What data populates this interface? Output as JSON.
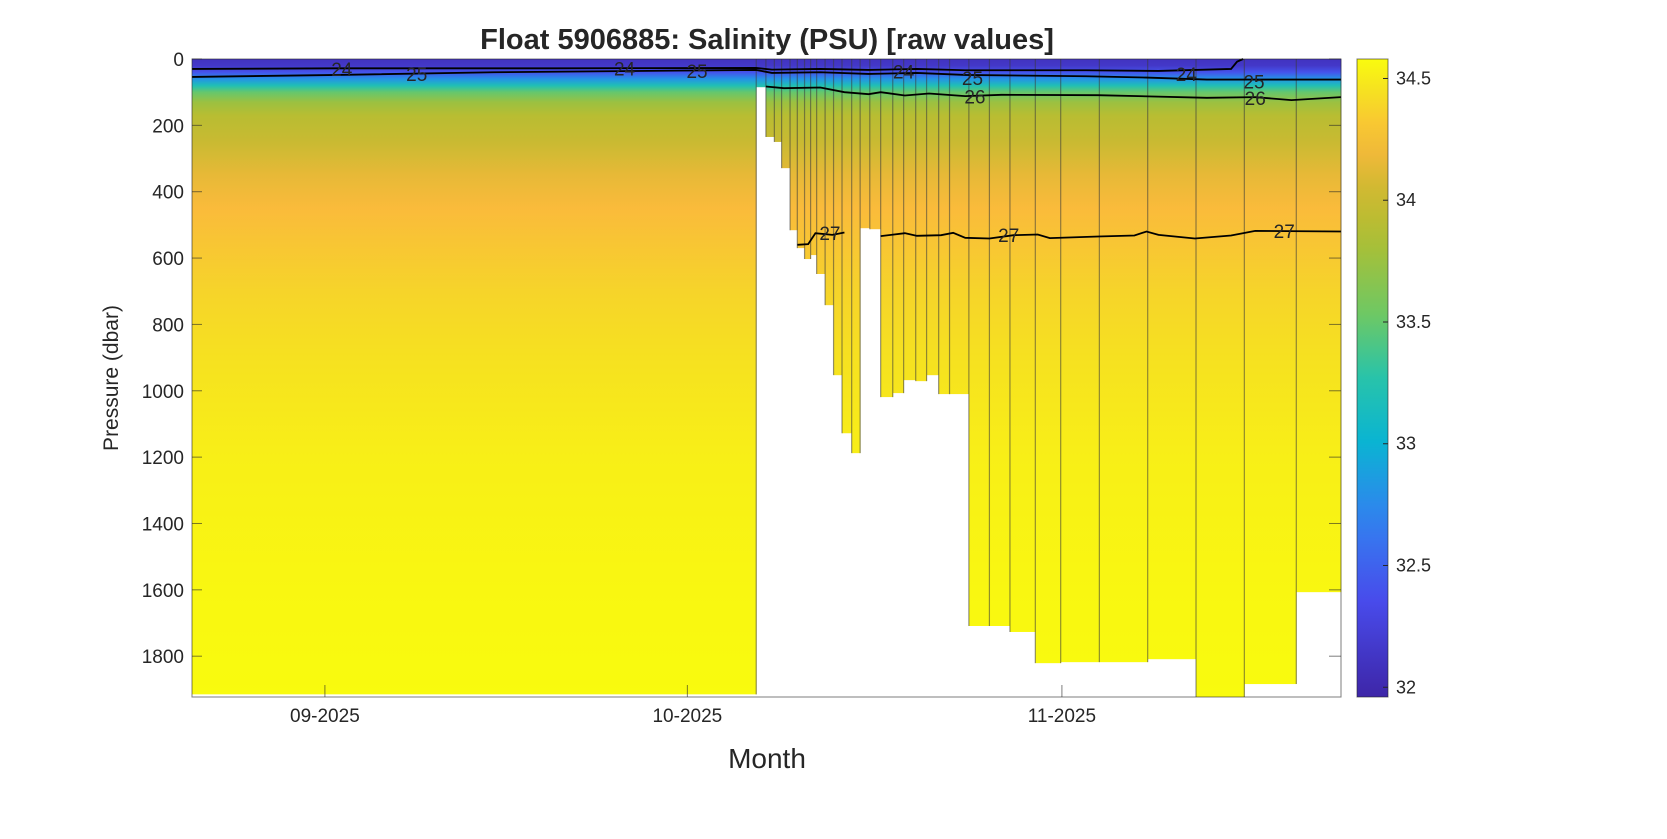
{
  "chart_data": {
    "type": "heatmap",
    "title": "Float 5906885: Salinity (PSU) [raw values]",
    "xlabel": "Month",
    "ylabel": "Pressure (dbar)",
    "x_units": "days since 2025-08-21",
    "xlim": [
      0,
      95.1
    ],
    "ylim": [
      0,
      1923
    ],
    "y_reversed": true,
    "x_ticks": [
      {
        "value": 11,
        "label": "09-2025"
      },
      {
        "value": 41,
        "label": "10-2025"
      },
      {
        "value": 72,
        "label": "11-2025"
      }
    ],
    "y_ticks": [
      0,
      200,
      400,
      600,
      800,
      1000,
      1200,
      1400,
      1600,
      1800
    ],
    "colorbar": {
      "clim": [
        31.96,
        34.58
      ],
      "ticks": [
        32,
        32.5,
        33,
        33.5,
        34,
        34.5
      ]
    },
    "salinity_profile": [
      [
        0,
        32.1
      ],
      [
        20,
        32.15
      ],
      [
        40,
        32.4
      ],
      [
        60,
        32.8
      ],
      [
        80,
        33.2
      ],
      [
        100,
        33.5
      ],
      [
        130,
        33.75
      ],
      [
        170,
        33.9
      ],
      [
        250,
        34.0
      ],
      [
        350,
        34.15
      ],
      [
        450,
        34.25
      ],
      [
        550,
        34.3
      ],
      [
        700,
        34.38
      ],
      [
        900,
        34.45
      ],
      [
        1200,
        34.52
      ],
      [
        1600,
        34.56
      ],
      [
        1923,
        34.58
      ]
    ],
    "profiles": [
      [
        0,
        46.7,
        1915
      ],
      [
        46.7,
        47.5,
        85
      ],
      [
        47.5,
        48.2,
        235
      ],
      [
        48.2,
        48.8,
        250
      ],
      [
        48.8,
        49.5,
        329
      ],
      [
        49.5,
        50.1,
        516
      ],
      [
        50.1,
        50.7,
        570
      ],
      [
        50.7,
        51.2,
        603
      ],
      [
        51.2,
        51.7,
        591
      ],
      [
        51.7,
        52.4,
        648
      ],
      [
        52.4,
        53.1,
        742
      ],
      [
        53.1,
        53.8,
        953
      ],
      [
        53.8,
        54.6,
        1128
      ],
      [
        54.6,
        55.3,
        1188
      ],
      [
        55.3,
        56.1,
        510
      ],
      [
        56.1,
        57.0,
        513
      ],
      [
        57.0,
        58.0,
        1019
      ],
      [
        58.0,
        58.9,
        1007
      ],
      [
        58.9,
        59.9,
        968
      ],
      [
        59.9,
        60.8,
        971
      ],
      [
        60.8,
        61.8,
        953
      ],
      [
        61.8,
        62.7,
        1010
      ],
      [
        62.7,
        64.3,
        1010
      ],
      [
        64.3,
        66.0,
        1709
      ],
      [
        66.0,
        67.7,
        1709
      ],
      [
        67.7,
        69.8,
        1727
      ],
      [
        69.8,
        71.9,
        1821
      ],
      [
        71.9,
        75.1,
        1818
      ],
      [
        75.1,
        79.1,
        1818
      ],
      [
        79.1,
        83.1,
        1809
      ],
      [
        83.1,
        87.1,
        1923
      ],
      [
        87.1,
        91.4,
        1884
      ],
      [
        91.4,
        95.1,
        1607
      ]
    ],
    "density_contours": [
      {
        "level": "24",
        "points": [
          [
            0,
            30
          ],
          [
            12,
            28
          ],
          [
            30,
            28
          ],
          [
            46.7,
            27
          ],
          [
            48,
            32
          ],
          [
            52,
            30
          ],
          [
            56,
            33
          ],
          [
            60,
            30
          ],
          [
            64,
            34
          ],
          [
            74,
            34
          ],
          [
            80,
            36
          ],
          [
            83,
            33
          ],
          [
            86,
            30
          ],
          [
            86.5,
            8
          ],
          [
            87,
            0
          ]
        ]
      },
      {
        "level": "25",
        "points": [
          [
            0,
            54
          ],
          [
            12,
            48
          ],
          [
            25,
            40
          ],
          [
            40,
            35
          ],
          [
            46.7,
            33
          ],
          [
            48,
            42
          ],
          [
            52,
            40
          ],
          [
            56,
            45
          ],
          [
            60,
            42
          ],
          [
            64,
            48
          ],
          [
            74,
            52
          ],
          [
            79,
            56
          ],
          [
            84,
            62
          ],
          [
            95.1,
            62
          ]
        ]
      },
      {
        "level": "26",
        "points": [
          [
            47.5,
            83
          ],
          [
            49,
            88
          ],
          [
            52,
            86
          ],
          [
            54,
            100
          ],
          [
            56,
            106
          ],
          [
            57,
            100
          ],
          [
            59,
            110
          ],
          [
            61,
            104
          ],
          [
            64,
            112
          ],
          [
            67,
            108
          ],
          [
            75,
            109
          ],
          [
            84,
            117
          ],
          [
            88,
            115
          ],
          [
            91,
            124
          ],
          [
            95.1,
            115
          ]
        ]
      },
      {
        "level": "27",
        "points": [
          [
            50.1,
            560
          ],
          [
            51,
            558
          ],
          [
            51.6,
            525
          ],
          [
            53,
            530
          ],
          [
            54,
            523
          ]
        ]
      },
      {
        "level": "27b",
        "points": [
          [
            57,
            534
          ],
          [
            59,
            525
          ],
          [
            60,
            533
          ],
          [
            62,
            531
          ],
          [
            63,
            524
          ],
          [
            64,
            539
          ],
          [
            66,
            541
          ],
          [
            68,
            531
          ],
          [
            70,
            529
          ],
          [
            71,
            540
          ],
          [
            75,
            535
          ],
          [
            78,
            532
          ],
          [
            79,
            520
          ],
          [
            80,
            530
          ],
          [
            83,
            541
          ],
          [
            86,
            532
          ],
          [
            88,
            518
          ],
          [
            95.1,
            520
          ]
        ]
      }
    ],
    "contour_labels": [
      {
        "text": "24",
        "day": 12.4,
        "dbar": 30
      },
      {
        "text": "25",
        "day": 18.6,
        "dbar": 45
      },
      {
        "text": "24",
        "day": 35.8,
        "dbar": 28
      },
      {
        "text": "25",
        "day": 41.8,
        "dbar": 36
      },
      {
        "text": "24",
        "day": 58.9,
        "dbar": 38
      },
      {
        "text": "25",
        "day": 64.6,
        "dbar": 57
      },
      {
        "text": "26",
        "day": 64.8,
        "dbar": 113
      },
      {
        "text": "24",
        "day": 82.3,
        "dbar": 45
      },
      {
        "text": "25",
        "day": 87.9,
        "dbar": 68
      },
      {
        "text": "26",
        "day": 88.0,
        "dbar": 118
      },
      {
        "text": "27",
        "day": 52.8,
        "dbar": 525
      },
      {
        "text": "27",
        "day": 67.6,
        "dbar": 530
      },
      {
        "text": "27",
        "day": 90.4,
        "dbar": 518
      }
    ]
  }
}
